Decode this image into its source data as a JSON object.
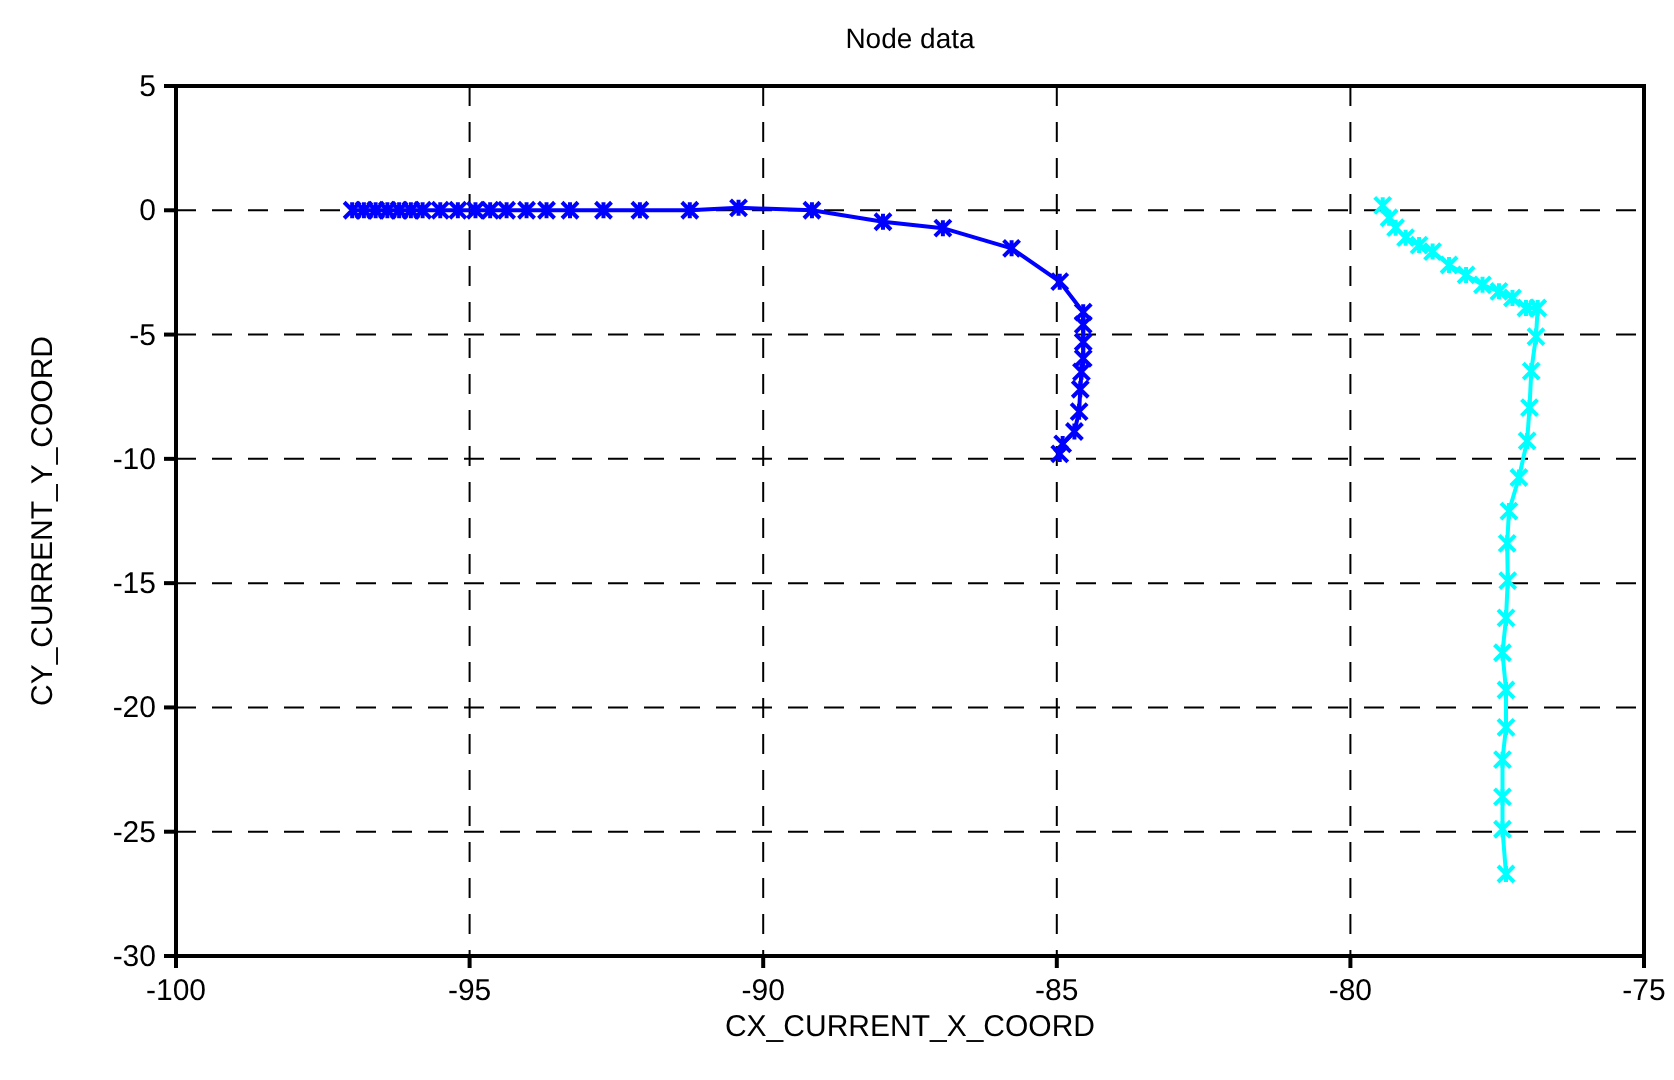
{
  "chart_data": {
    "type": "line",
    "title": "Node data",
    "xlabel": "CX_CURRENT_X_COORD",
    "ylabel": "CY_CURRENT_Y_COORD",
    "xlim": [
      -100,
      -75
    ],
    "xticks": [
      -100,
      -95,
      -90,
      -85,
      -80,
      -75
    ],
    "ylim": [
      -30,
      5
    ],
    "yticks": [
      -30,
      -25,
      -20,
      -15,
      -10,
      -5,
      0,
      5
    ],
    "grid": true,
    "marker": "cross",
    "line_style": "solid",
    "series": [
      {
        "color": "#0000ff",
        "x": [
          -97,
          -96.8,
          -96.6,
          -96.4,
          -96.2,
          -96,
          -95.8,
          -95.5,
          -95.2,
          -94.9,
          -94.65,
          -94.37,
          -94.03,
          -93.69,
          -93.29,
          -92.72,
          -92.1,
          -91.25,
          -90.42,
          -89.17,
          -87.96,
          -86.94,
          -85.77,
          -84.95,
          -84.55,
          -84.55,
          -84.55,
          -84.55,
          -84.58,
          -84.6,
          -84.62,
          -84.7,
          -84.9,
          -84.95
        ],
        "values": [
          0,
          0,
          0,
          0,
          0,
          0,
          0,
          0,
          0,
          0,
          0,
          0,
          0,
          0,
          0,
          0,
          0,
          0,
          0.1,
          0,
          -0.46,
          -0.72,
          -1.53,
          -2.87,
          -4.1,
          -4.6,
          -5.3,
          -5.96,
          -6.5,
          -7.2,
          -8.1,
          -8.9,
          -9.4,
          -9.8
        ]
      },
      {
        "color": "#00ffff",
        "x": [
          -79.45,
          -79.34,
          -79.23,
          -79.06,
          -78.83,
          -78.6,
          -78.32,
          -78.03,
          -77.75,
          -77.47,
          -77.24,
          -77.01,
          -76.81,
          -76.84,
          -76.92,
          -76.95,
          -76.99,
          -77.13,
          -77.3,
          -77.33,
          -77.32,
          -77.35,
          -77.41,
          -77.35,
          -77.35,
          -77.41,
          -77.41,
          -77.41,
          -77.35
        ],
        "values": [
          0.2,
          -0.3,
          -0.7,
          -1.1,
          -1.4,
          -1.66,
          -2.2,
          -2.6,
          -3,
          -3.26,
          -3.53,
          -3.93,
          -3.93,
          -5.08,
          -6.47,
          -7.94,
          -9.28,
          -10.75,
          -12.1,
          -13.4,
          -14.9,
          -16.4,
          -17.8,
          -19.3,
          -20.8,
          -22.1,
          -23.6,
          -24.9,
          -26.7
        ]
      }
    ]
  }
}
